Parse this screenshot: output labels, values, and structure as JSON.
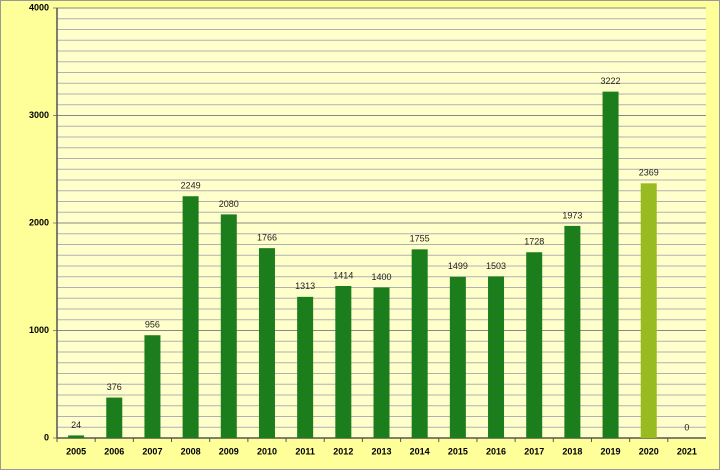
{
  "chart_data": {
    "type": "bar",
    "categories": [
      "2005",
      "2006",
      "2007",
      "2008",
      "2009",
      "2010",
      "2011",
      "2012",
      "2013",
      "2014",
      "2015",
      "2016",
      "2017",
      "2018",
      "2019",
      "2020",
      "2021"
    ],
    "values": [
      24,
      376,
      956,
      2249,
      2080,
      1766,
      1313,
      1414,
      1400,
      1755,
      1499,
      1503,
      1728,
      1973,
      3222,
      2369,
      0
    ],
    "colors": [
      "#1b7d1b",
      "#1b7d1b",
      "#1b7d1b",
      "#1b7d1b",
      "#1b7d1b",
      "#1b7d1b",
      "#1b7d1b",
      "#1b7d1b",
      "#1b7d1b",
      "#1b7d1b",
      "#1b7d1b",
      "#1b7d1b",
      "#1b7d1b",
      "#1b7d1b",
      "#1b7d1b",
      "#99bb22",
      "#1b7d1b"
    ],
    "ylim": [
      0,
      4000
    ],
    "yticks": [
      0,
      1000,
      2000,
      3000,
      4000
    ],
    "yminor_step": 100,
    "grid": true
  }
}
